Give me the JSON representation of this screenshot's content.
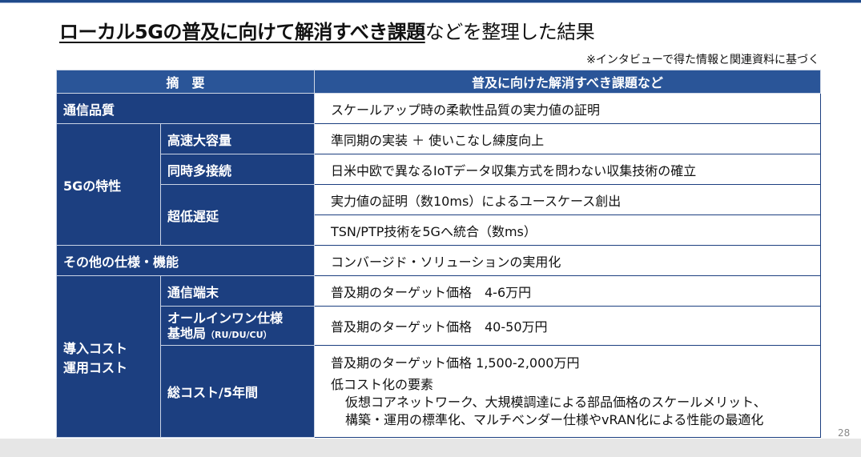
{
  "title": {
    "underlined": "ローカル5Gの普及に向けて解消すべき課題",
    "rest": "などを整理した結果"
  },
  "note": "※インタビューで得た情報と関連資料に基づく",
  "header": {
    "col1": "摘　要",
    "col2": "普及に向けた解消すべき課題など"
  },
  "rows": {
    "comm_quality": {
      "label": "通信品質",
      "text": "スケールアップ時の柔軟性品質の実力値の証明"
    },
    "five_g": {
      "label": "5Gの特性",
      "embb": {
        "label": "高速大容量",
        "text": "準同期の実装 ＋ 使いこなし練度向上"
      },
      "mmtc": {
        "label": "同時多接続",
        "text": "日米中欧で異なるIoTデータ収集方式を問わない収集技術の確立"
      },
      "urllc": {
        "label": "超低遅延",
        "text1": "実力値の証明（数10ms）によるユースケース創出",
        "text2": "TSN/PTP技術を5Gへ統合（数ms）"
      }
    },
    "other": {
      "label": "その他の仕様・機能",
      "text": "コンバージド・ソリューションの実用化"
    },
    "cost": {
      "label1": "導入コスト",
      "label2": "運用コスト",
      "terminal": {
        "label": "通信端末",
        "text": "普及期のターゲット価格　4-6万円"
      },
      "base": {
        "label1": "オールインワン仕様",
        "label2": "基地局",
        "label_small": "（RU/DU/CU）",
        "text": "普及期のターゲット価格　40-50万円"
      },
      "total": {
        "label": "総コスト/5年間",
        "text1": "普及期のターゲット価格 1,500-2,000万円",
        "text2": "低コスト化の要素",
        "text3": "仮想コアネットワーク、大規模調達による部品価格のスケールメリット、",
        "text4": "構築・運用の標準化、マルチベンダー仕様やvRAN化による性能の最適化"
      }
    }
  },
  "page_number": "28"
}
